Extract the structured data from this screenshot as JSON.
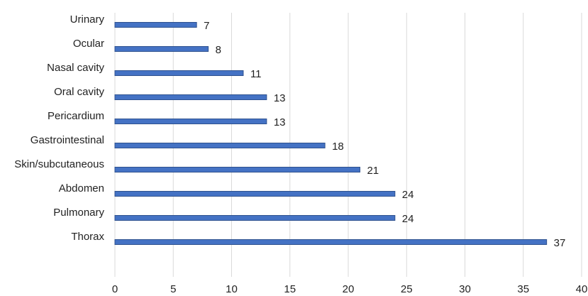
{
  "chart_data": {
    "type": "bar",
    "orientation": "horizontal",
    "categories": [
      "Urinary",
      "Ocular",
      "Nasal cavity",
      "Oral cavity",
      "Pericardium",
      "Gastrointestinal",
      "Skin/subcutaneous",
      "Abdomen",
      "Pulmonary",
      "Thorax"
    ],
    "values": [
      7,
      8,
      11,
      13,
      13,
      18,
      21,
      24,
      24,
      37
    ],
    "color": "#4472c4",
    "xlim": [
      0,
      40
    ],
    "xticks": [
      0,
      5,
      10,
      15,
      20,
      25,
      30,
      35,
      40
    ],
    "grid": true
  }
}
